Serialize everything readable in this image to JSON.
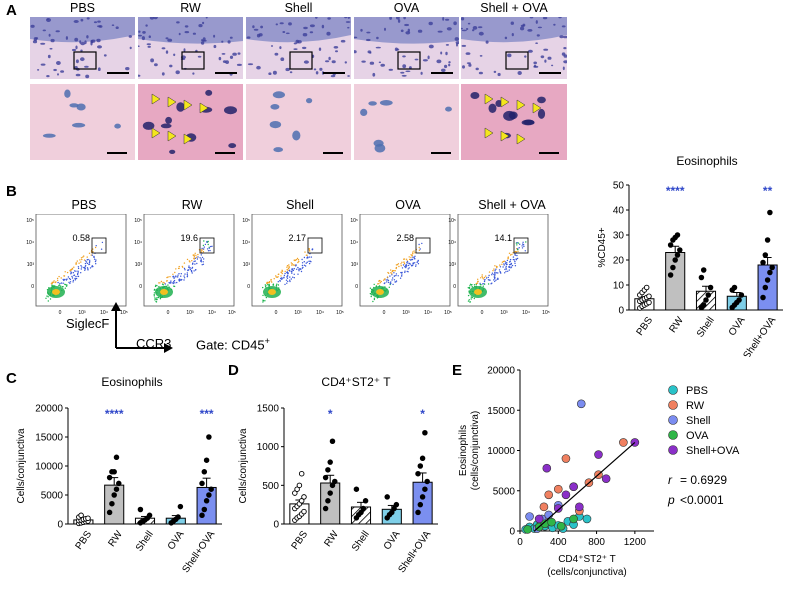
{
  "panels": {
    "A": "A",
    "B": "B",
    "C": "C",
    "D": "D",
    "E": "E"
  },
  "groups": [
    "PBS",
    "RW",
    "Shell",
    "OVA",
    "Shell + OVA"
  ],
  "flow": {
    "gates": [
      "0.58",
      "19.6",
      "2.17",
      "2.58",
      "14.1"
    ],
    "y_axis": "SiglecF",
    "x_axis": "CCR3",
    "gate_note_prefix": "Gate: CD45",
    "gate_note_sup": "+",
    "tick_labels_y": [
      "10⁵",
      "10⁴",
      "10³",
      "0"
    ],
    "tick_labels_x": [
      "0",
      "10³",
      "10⁴",
      "10⁵"
    ]
  },
  "colors": {
    "PBS": "#ffffff",
    "RW": "#c0c0c0",
    "Shell": "#ffffff",
    "OVA": "#7ecfe8",
    "ShellOVA": "#7b8ff0",
    "star": "#2f47c9",
    "scatter_PBS": "#29c2c8",
    "scatter_RW": "#f08060",
    "scatter_Shell": "#7b8cf0",
    "scatter_OVA": "#2fb547",
    "scatter_ShellOVA": "#8a2fc8"
  },
  "chart_data": [
    {
      "type": "bar",
      "panel": "B",
      "title": "Eosinophils",
      "ylabel": "%CD45+",
      "categories": [
        "PBS",
        "RW",
        "Shell",
        "OVA",
        "Shell+OVA"
      ],
      "values": [
        4.5,
        23,
        7.5,
        5.5,
        18
      ],
      "errors": [
        0.8,
        2.5,
        2,
        1.5,
        3
      ],
      "ylim": [
        0,
        50
      ],
      "yticks": [
        "0",
        "10",
        "20",
        "30",
        "40",
        "50"
      ],
      "points": [
        [
          0.8,
          1.5,
          2,
          2.5,
          3,
          3.5,
          4,
          4.5,
          5,
          5.5,
          6,
          7,
          8,
          9
        ],
        [
          14,
          17,
          20,
          22,
          24,
          26,
          28,
          29,
          30
        ],
        [
          1,
          2,
          4,
          6,
          9,
          13,
          16
        ],
        [
          1,
          2,
          3,
          4,
          6,
          8,
          9
        ],
        [
          5,
          9,
          12,
          15,
          17,
          19,
          22,
          28,
          39
        ]
      ],
      "stars": [
        "",
        "****",
        "",
        "",
        "**"
      ]
    },
    {
      "type": "bar",
      "panel": "C",
      "title": "Eosinophils",
      "ylabel": "Cells/conjunctiva",
      "categories": [
        "PBS",
        "RW",
        "Shell",
        "OVA",
        "Shell+OVA"
      ],
      "values": [
        700,
        6700,
        1000,
        1000,
        6300
      ],
      "errors": [
        150,
        1300,
        300,
        450,
        1600
      ],
      "ylim": [
        0,
        20000
      ],
      "yticks": [
        "0",
        "5000",
        "10000",
        "15000",
        "20000"
      ],
      "points": [
        [
          100,
          200,
          300,
          400,
          500,
          600,
          700,
          800,
          900,
          1000,
          1200,
          1500
        ],
        [
          2000,
          3500,
          5000,
          6000,
          7000,
          8000,
          9000,
          9000,
          11500
        ],
        [
          200,
          400,
          700,
          1000,
          1500,
          2500
        ],
        [
          200,
          500,
          800,
          1200,
          3000
        ],
        [
          1500,
          2500,
          4000,
          5000,
          6000,
          7000,
          9000,
          11000,
          15000
        ]
      ],
      "stars": [
        "",
        "****",
        "",
        "",
        "***"
      ]
    },
    {
      "type": "bar",
      "panel": "D",
      "title": "CD4⁺ST2⁺ T",
      "ylabel": "Cells/conjunctiva",
      "categories": [
        "PBS",
        "RW",
        "Shell",
        "OVA",
        "Shell+OVA"
      ],
      "values": [
        260,
        530,
        220,
        190,
        540
      ],
      "errors": [
        50,
        100,
        60,
        50,
        120
      ],
      "ylim": [
        0,
        1500
      ],
      "yticks": [
        "0",
        "500",
        "1000",
        "1500"
      ],
      "points": [
        [
          50,
          80,
          100,
          130,
          160,
          200,
          230,
          260,
          300,
          350,
          400,
          450,
          500,
          650
        ],
        [
          200,
          300,
          400,
          500,
          550,
          600,
          700,
          800,
          1070
        ],
        [
          80,
          120,
          150,
          200,
          300,
          450
        ],
        [
          80,
          120,
          150,
          200,
          250,
          350
        ],
        [
          150,
          250,
          350,
          450,
          550,
          650,
          750,
          850,
          1180
        ]
      ],
      "stars": [
        "",
        "*",
        "",
        "",
        "*"
      ]
    },
    {
      "type": "scatter",
      "panel": "E",
      "ylabel": "Eosinophils",
      "ylabel2": "(cells/conjunctiva)",
      "xlabel": "CD4⁺ST2⁺ T",
      "xlabel2": "(cells/conjunctiva)",
      "xlim": [
        0,
        1400
      ],
      "ylim": [
        0,
        20000
      ],
      "xticks": [
        "0",
        "400",
        "800",
        "1200"
      ],
      "yticks": [
        "0",
        "5000",
        "10000",
        "15000",
        "20000"
      ],
      "series": [
        {
          "name": "PBS",
          "points": [
            [
              60,
              200
            ],
            [
              100,
              500
            ],
            [
              150,
              300
            ],
            [
              180,
              800
            ],
            [
              220,
              1000
            ],
            [
              260,
              600
            ],
            [
              300,
              900
            ],
            [
              340,
              400
            ],
            [
              400,
              700
            ],
            [
              450,
              300
            ],
            [
              500,
              1200
            ],
            [
              560,
              800
            ],
            [
              620,
              1800
            ],
            [
              700,
              1500
            ]
          ]
        },
        {
          "name": "RW",
          "points": [
            [
              250,
              3000
            ],
            [
              300,
              4500
            ],
            [
              400,
              5200
            ],
            [
              480,
              9000
            ],
            [
              560,
              5500
            ],
            [
              620,
              2500
            ],
            [
              720,
              6000
            ],
            [
              820,
              7000
            ],
            [
              1080,
              11000
            ]
          ]
        },
        {
          "name": "Shell",
          "points": [
            [
              100,
              1800
            ],
            [
              180,
              300
            ],
            [
              230,
              1500
            ],
            [
              300,
              2000
            ],
            [
              400,
              3200
            ],
            [
              640,
              15800
            ]
          ]
        },
        {
          "name": "OVA",
          "points": [
            [
              80,
              200
            ],
            [
              200,
              500
            ],
            [
              260,
              900
            ],
            [
              330,
              1100
            ],
            [
              430,
              600
            ],
            [
              560,
              1500
            ]
          ]
        },
        {
          "name": "Shell+OVA",
          "points": [
            [
              200,
              1500
            ],
            [
              280,
              7800
            ],
            [
              400,
              2800
            ],
            [
              480,
              4500
            ],
            [
              560,
              5500
            ],
            [
              620,
              3000
            ],
            [
              820,
              9500
            ],
            [
              900,
              6500
            ],
            [
              1200,
              11000
            ]
          ]
        }
      ],
      "fit": [
        [
          150,
          0
        ],
        [
          1200,
          11000
        ]
      ],
      "stat_r": "r",
      "stat_r_val": "= 0.6929",
      "stat_p": "p",
      "stat_p_val": "<0.0001"
    }
  ]
}
